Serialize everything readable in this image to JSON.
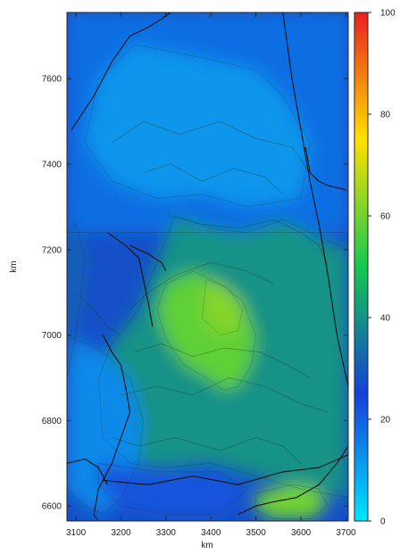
{
  "chart_data": {
    "type": "heatmap",
    "xlabel": "km",
    "ylabel": "km",
    "xlim": [
      3080,
      3705
    ],
    "ylim": [
      6565,
      7755
    ],
    "x_ticks": [
      3100,
      3200,
      3300,
      3400,
      3500,
      3600,
      3700
    ],
    "y_ticks": [
      6600,
      6800,
      7000,
      7200,
      7400,
      7600
    ],
    "colorbar": {
      "ticks": [
        0,
        20,
        40,
        60,
        80,
        100
      ],
      "range": [
        0,
        100
      ],
      "colors": [
        "#00e5ff",
        "#1540d8",
        "#14c850",
        "#ffe000",
        "#e82020"
      ]
    },
    "field_regions": [
      {
        "level": 18,
        "x": [
          3080,
          3200,
          3320,
          3420,
          3520,
          3600,
          3705,
          3705,
          3080
        ],
        "y": [
          7755,
          7755,
          7755,
          7755,
          7755,
          7755,
          7755,
          7240,
          7240
        ]
      },
      {
        "level": 12,
        "x": [
          3150,
          3230,
          3330,
          3420,
          3500,
          3560,
          3620,
          3600,
          3480,
          3380,
          3280,
          3180,
          3120
        ],
        "y": [
          7600,
          7680,
          7660,
          7640,
          7620,
          7560,
          7450,
          7320,
          7300,
          7330,
          7320,
          7360,
          7450
        ]
      },
      {
        "level": 40,
        "x": [
          3320,
          3400,
          3480,
          3560,
          3640,
          3705,
          3705,
          3600,
          3500,
          3400,
          3300,
          3220,
          3160,
          3150,
          3180,
          3240,
          3290
        ],
        "y": [
          7280,
          7250,
          7240,
          7270,
          7230,
          7200,
          6620,
          6640,
          6670,
          6700,
          6690,
          6700,
          6760,
          6900,
          6980,
          7060,
          7200
        ]
      },
      {
        "level": 58,
        "x": [
          3300,
          3360,
          3420,
          3470,
          3500,
          3490,
          3460,
          3430,
          3390,
          3340,
          3300,
          3280
        ],
        "y": [
          7120,
          7150,
          7120,
          7080,
          7000,
          6930,
          6880,
          6870,
          6900,
          6930,
          6990,
          7060
        ]
      },
      {
        "level": 62,
        "x": [
          3390,
          3440,
          3470,
          3460,
          3420,
          3380
        ],
        "y": [
          7130,
          7110,
          7060,
          7010,
          7000,
          7040
        ]
      },
      {
        "level": 14,
        "x": [
          3080,
          3160,
          3220,
          3250,
          3240,
          3200,
          3160,
          3120,
          3080
        ],
        "y": [
          7000,
          6960,
          6900,
          6800,
          6700,
          6620,
          6580,
          6600,
          6640
        ]
      },
      {
        "level": 22,
        "x": [
          3150,
          3280,
          3420,
          3480,
          3420,
          3300,
          3200,
          3150
        ],
        "y": [
          6700,
          6680,
          6680,
          6640,
          6580,
          6580,
          6600,
          6650
        ]
      },
      {
        "level": 60,
        "x": [
          3500,
          3580,
          3640,
          3660,
          3620,
          3540,
          3500
        ],
        "y": [
          6630,
          6650,
          6640,
          6600,
          6570,
          6570,
          6590
        ]
      },
      {
        "level": 32,
        "x": [
          3080,
          3100,
          3120,
          3100,
          3080
        ],
        "y": [
          7240,
          7260,
          7180,
          7000,
          6900
        ]
      }
    ],
    "borders": [
      {
        "x": [
          3090,
          3140,
          3180,
          3220,
          3260,
          3290,
          3310,
          3320
        ],
        "y": [
          7480,
          7560,
          7640,
          7700,
          7720,
          7740,
          7755,
          7755
        ]
      },
      {
        "x": [
          3170,
          3210,
          3240,
          3250,
          3260,
          3270
        ],
        "y": [
          7240,
          7210,
          7180,
          7130,
          7080,
          7020
        ]
      },
      {
        "x": [
          3220,
          3260,
          3290,
          3300
        ],
        "y": [
          7210,
          7190,
          7170,
          7150
        ]
      },
      {
        "x": [
          3160,
          3180,
          3200,
          3210,
          3220,
          3200,
          3180,
          3150,
          3140,
          3150
        ],
        "y": [
          7000,
          6960,
          6930,
          6880,
          6820,
          6760,
          6700,
          6640,
          6580,
          6565
        ]
      },
      {
        "x": [
          3160,
          3260,
          3360,
          3460,
          3560,
          3640,
          3705
        ],
        "y": [
          6660,
          6650,
          6670,
          6650,
          6680,
          6690,
          6720
        ]
      },
      {
        "x": [
          3460,
          3500,
          3540,
          3590,
          3640,
          3680,
          3705
        ],
        "y": [
          6580,
          6600,
          6610,
          6620,
          6650,
          6700,
          6740
        ]
      },
      {
        "x": [
          3560,
          3580,
          3600,
          3620,
          3640,
          3660,
          3680,
          3705
        ],
        "y": [
          7755,
          7600,
          7480,
          7360,
          7260,
          7140,
          7000,
          6880
        ]
      },
      {
        "x": [
          3610,
          3620,
          3640,
          3660,
          3700
        ],
        "y": [
          7440,
          7380,
          7360,
          7350,
          7340
        ]
      },
      {
        "x": [
          3080,
          3120,
          3150,
          3170
        ],
        "y": [
          6700,
          6710,
          6690,
          6650
        ]
      }
    ],
    "contours": [
      {
        "x": [
          3180,
          3250,
          3330,
          3420,
          3500,
          3580,
          3620
        ],
        "y": [
          7450,
          7500,
          7470,
          7500,
          7460,
          7440,
          7380
        ]
      },
      {
        "x": [
          3250,
          3310,
          3380,
          3450,
          3520,
          3560
        ],
        "y": [
          7380,
          7400,
          7360,
          7390,
          7370,
          7330
        ]
      },
      {
        "x": [
          3300,
          3380,
          3460,
          3540,
          3600,
          3640,
          3660
        ],
        "y": [
          7280,
          7260,
          7250,
          7270,
          7240,
          7210,
          7160
        ]
      },
      {
        "x": [
          3180,
          3240,
          3320,
          3420,
          3500,
          3560,
          3600
        ],
        "y": [
          6760,
          6740,
          6760,
          6730,
          6760,
          6740,
          6700
        ]
      },
      {
        "x": [
          3200,
          3280,
          3360,
          3440,
          3520,
          3600,
          3660
        ],
        "y": [
          6860,
          6880,
          6860,
          6900,
          6880,
          6840,
          6820
        ]
      },
      {
        "x": [
          3220,
          3260,
          3320,
          3400,
          3480,
          3540
        ],
        "y": [
          7060,
          7100,
          7140,
          7170,
          7150,
          7120
        ]
      },
      {
        "x": [
          3230,
          3290,
          3360,
          3430,
          3510,
          3570,
          3620
        ],
        "y": [
          6960,
          6980,
          6950,
          6970,
          6960,
          6930,
          6900
        ]
      },
      {
        "x": [
          3100,
          3140,
          3170,
          3200
        ],
        "y": [
          7100,
          7060,
          7020,
          7000
        ]
      }
    ]
  }
}
